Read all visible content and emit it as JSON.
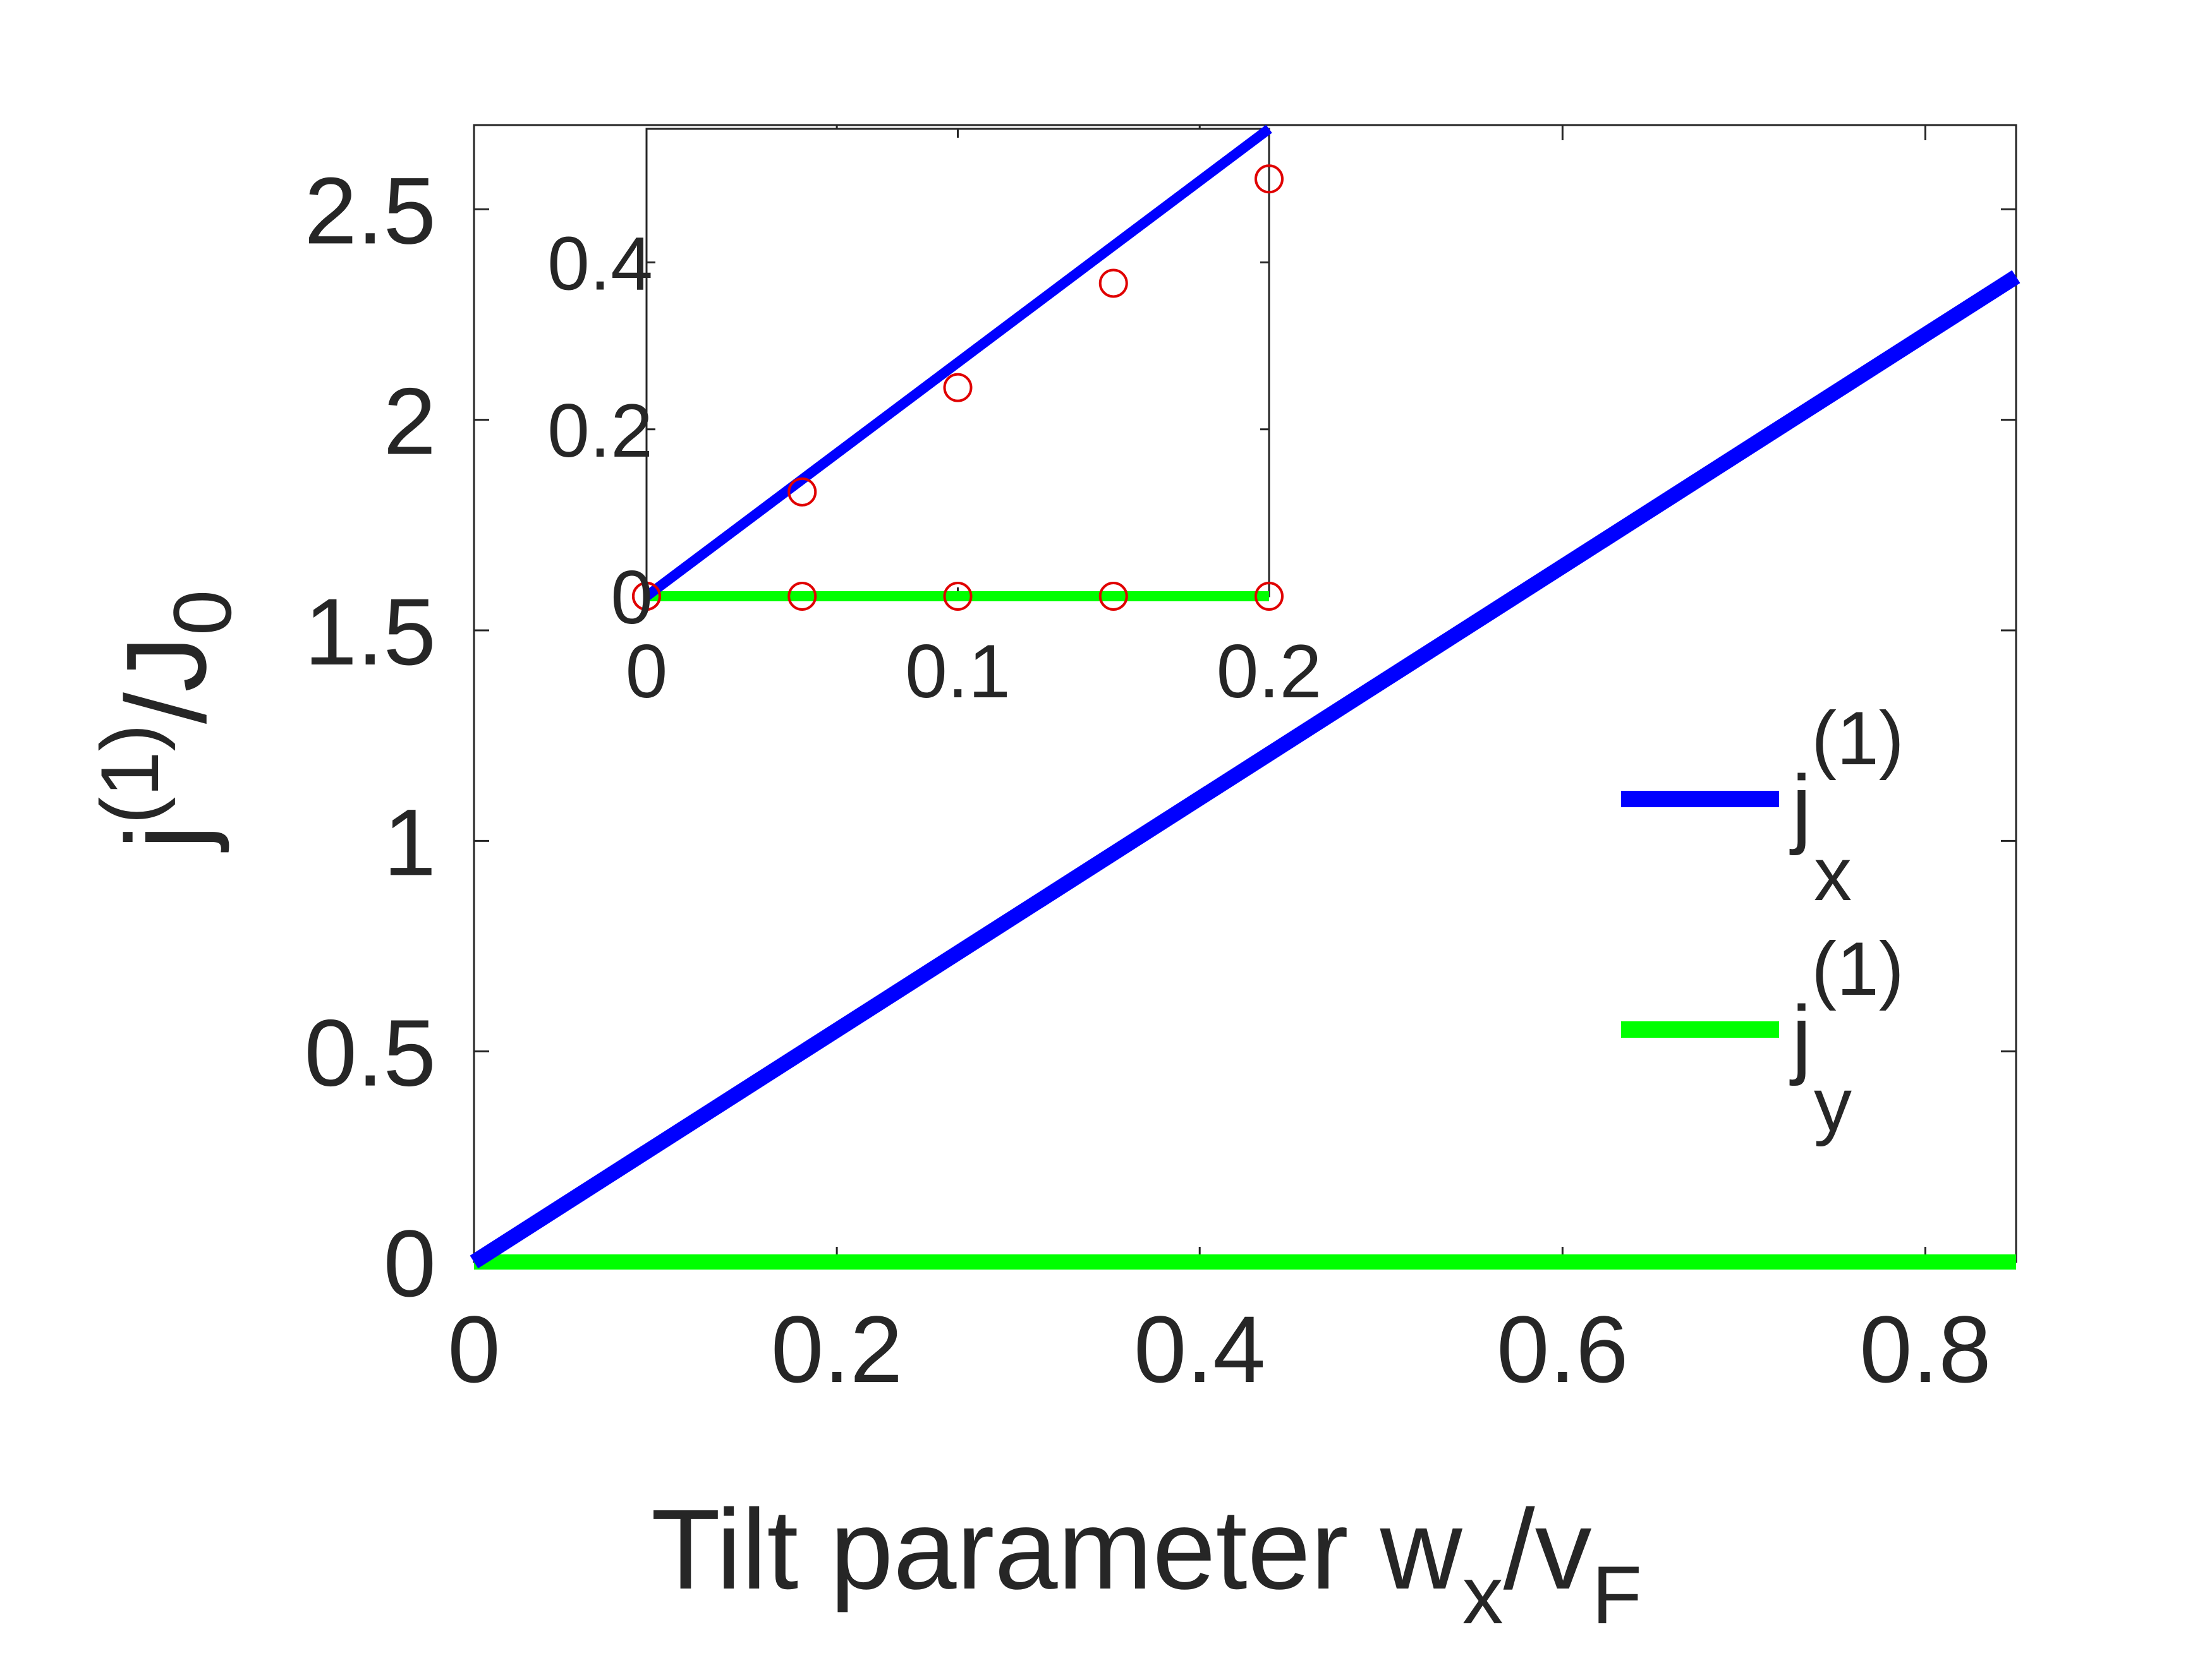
{
  "chart_data": [
    {
      "type": "line",
      "role": "main",
      "xlabel": "Tilt parameter w",
      "xlabel_sub": "x",
      "xlabel_tail": "/v",
      "xlabel_tail_sub": "F",
      "ylabel": "j",
      "ylabel_sup": "(1)",
      "ylabel_tail": "/J",
      "ylabel_tail_sub": "0",
      "xlim": [
        0,
        0.85
      ],
      "ylim": [
        0,
        2.7
      ],
      "xticks": [
        0,
        0.2,
        0.4,
        0.6,
        0.8
      ],
      "xtick_labels": [
        "0",
        "0.2",
        "0.4",
        "0.6",
        "0.8"
      ],
      "yticks": [
        0,
        0.5,
        1,
        1.5,
        2,
        2.5
      ],
      "ytick_labels": [
        "0",
        "0.5",
        "1",
        "1.5",
        "2",
        "2.5"
      ],
      "grid": false,
      "legend_position": "right",
      "series": [
        {
          "name": "j",
          "name_sup": "(1)",
          "name_sub": "x",
          "color": "#0000ff",
          "x": [
            0,
            0.85
          ],
          "y": [
            0,
            2.34
          ]
        },
        {
          "name": "j",
          "name_sup": "(1)",
          "name_sub": "y",
          "color": "#00ff00",
          "x": [
            0,
            0.85
          ],
          "y": [
            0,
            0
          ]
        }
      ]
    },
    {
      "type": "line",
      "role": "inset",
      "xlim": [
        0,
        0.2
      ],
      "ylim": [
        0,
        0.56
      ],
      "xticks": [
        0,
        0.1,
        0.2
      ],
      "xtick_labels": [
        "0",
        "0.1",
        "0.2"
      ],
      "yticks": [
        0,
        0.2,
        0.4
      ],
      "ytick_labels": [
        "0",
        "0.2",
        "0.4"
      ],
      "series": [
        {
          "color": "#0000ff",
          "kind": "line",
          "x": [
            0,
            0.2
          ],
          "y": [
            0,
            0.56
          ]
        },
        {
          "color": "#00ff00",
          "kind": "line",
          "x": [
            0,
            0.2
          ],
          "y": [
            0,
            0
          ]
        },
        {
          "color": "#e00000",
          "kind": "markers",
          "x": [
            0,
            0.05,
            0.1,
            0.15,
            0.2
          ],
          "y": [
            0,
            0.125,
            0.25,
            0.375,
            0.5
          ]
        },
        {
          "color": "#e00000",
          "kind": "markers",
          "x": [
            0,
            0.05,
            0.1,
            0.15,
            0.2
          ],
          "y": [
            0,
            0,
            0,
            0,
            0
          ]
        }
      ]
    }
  ]
}
